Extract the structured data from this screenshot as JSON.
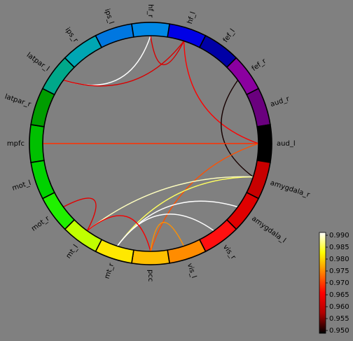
{
  "diagram": {
    "type": "circular-connectivity",
    "node_labels": [
      "hf_l",
      "fef_l",
      "fef_r",
      "aud_r",
      "aud_l",
      "amygdala_r",
      "amygdala_l",
      "vis_r",
      "vis_l",
      "pcc",
      "mt_r",
      "mt_l",
      "mot_r",
      "mot_l",
      "mpfc",
      "latpar_r",
      "latpar_l",
      "ips_r",
      "ips_l",
      "hf_r"
    ],
    "node_colors": [
      "#0000e6",
      "#0000a6",
      "#8b00a0",
      "#6a007e",
      "#000000",
      "#c80000",
      "#e00000",
      "#ff1010",
      "#ff8c00",
      "#ffbf00",
      "#ffe800",
      "#c0ff00",
      "#20f000",
      "#00d200",
      "#00c000",
      "#009d00",
      "#00a88a",
      "#00a6b3",
      "#0077e0",
      "#0088e6"
    ],
    "connections": [
      {
        "from": "hf_r",
        "to": "latpar_l",
        "value": 0.99
      },
      {
        "from": "hf_l",
        "to": "latpar_l",
        "value": 0.962
      },
      {
        "from": "hf_l",
        "to": "hf_r",
        "value": 0.962
      },
      {
        "from": "hf_l",
        "to": "aud_l",
        "value": 0.966
      },
      {
        "from": "fef_r",
        "to": "amygdala_r",
        "value": 0.951
      },
      {
        "from": "mpfc",
        "to": "aud_l",
        "value": 0.969
      },
      {
        "from": "aud_l",
        "to": "pcc",
        "value": 0.971
      },
      {
        "from": "mt_l",
        "to": "mot_r",
        "value": 0.963
      },
      {
        "from": "mt_r",
        "to": "amygdala_r",
        "value": 0.985
      },
      {
        "from": "mt_l",
        "to": "amygdala_r",
        "value": 0.988
      },
      {
        "from": "mt_r",
        "to": "amygdala_l",
        "value": 0.99
      },
      {
        "from": "mt_r",
        "to": "vis_r",
        "value": 0.99
      },
      {
        "from": "pcc",
        "to": "mt_l",
        "value": 0.965
      },
      {
        "from": "vis_l",
        "to": "pcc",
        "value": 0.975
      }
    ],
    "colorbar": {
      "min": 0.95,
      "max": 0.99,
      "ticks": [
        "0.950",
        "0.955",
        "0.960",
        "0.965",
        "0.970",
        "0.975",
        "0.980",
        "0.985",
        "0.990"
      ],
      "colormap": [
        "#000000",
        "#b00000",
        "#ff0000",
        "#ff8000",
        "#ffff00",
        "#ffffff"
      ]
    }
  }
}
